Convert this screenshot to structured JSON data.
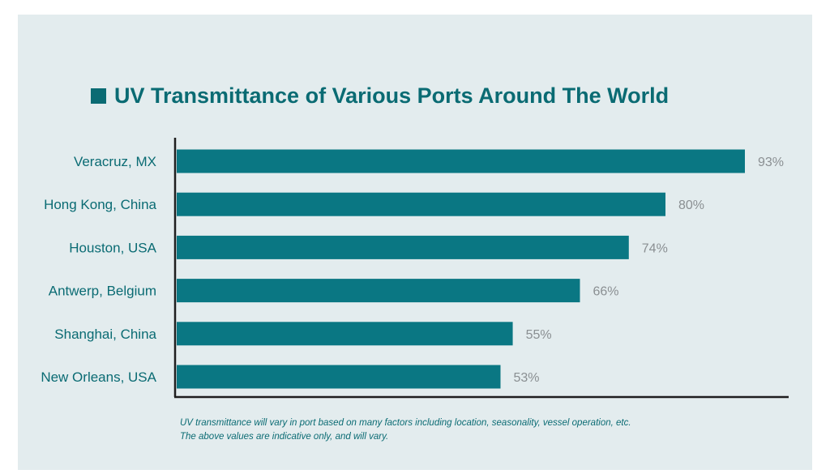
{
  "chart_data": {
    "type": "bar",
    "orientation": "horizontal",
    "title": "UV Transmittance of Various Ports Around The World",
    "categories": [
      "Veracruz, MX",
      "Hong Kong, China",
      "Houston, USA",
      "Antwerp, Belgium",
      "Shanghai, China",
      "New Orleans, USA"
    ],
    "values": [
      93,
      80,
      74,
      66,
      55,
      53
    ],
    "value_labels": [
      "93%",
      "80%",
      "74%",
      "66%",
      "55%",
      "53%"
    ],
    "xlim": [
      0,
      100
    ],
    "grid": false,
    "legend": "none",
    "colors": {
      "bar": "#0a7783",
      "title": "#0a6b73",
      "value_label": "#8a8f92",
      "axis": "#1e1e1e",
      "background": "#e3ecee"
    }
  },
  "footnote": {
    "line1": "UV transmittance will vary in port based on many factors including location, seasonality, vessel operation, etc.",
    "line2": "The above values are indicative only, and will vary."
  }
}
